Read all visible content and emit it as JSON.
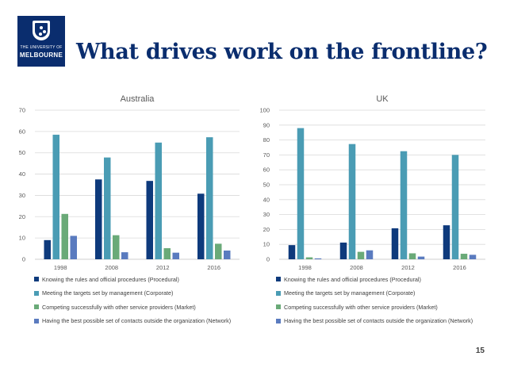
{
  "header": {
    "logo": {
      "line1": "THE UNIVERSITY OF",
      "line2": "MELBOURNE"
    },
    "title": "What drives work on the frontline?"
  },
  "page_number": "15",
  "colors": [
    "#0e3a7c",
    "#4a9cb4",
    "#6aaa78",
    "#5a7bbf"
  ],
  "chart_data": [
    {
      "type": "bar",
      "title": "Australia",
      "categories": [
        "1998",
        "2008",
        "2012",
        "2016"
      ],
      "ylim": [
        0,
        70
      ],
      "yticks": [
        0,
        10,
        20,
        30,
        40,
        50,
        60,
        70
      ],
      "grid": true,
      "legend_position": "bottom",
      "series": [
        {
          "name": "Knowing the rules and official procedures (Procedural)",
          "values": [
            9,
            37.5,
            36.8,
            30.8
          ]
        },
        {
          "name": "Meeting the targets set by management (Corporate)",
          "values": [
            58.5,
            47.8,
            54.8,
            57.3
          ]
        },
        {
          "name": "Competing successfully with other service providers (Market)",
          "values": [
            21.3,
            11.3,
            5.2,
            7.3
          ]
        },
        {
          "name": "Having the best possible set of contacts outside the organization (Network)",
          "values": [
            11,
            3.3,
            3.1,
            4.1
          ]
        }
      ]
    },
    {
      "type": "bar",
      "title": "UK",
      "categories": [
        "1998",
        "2008",
        "2012",
        "2016"
      ],
      "ylim": [
        0,
        100
      ],
      "yticks": [
        0,
        10,
        20,
        30,
        40,
        50,
        60,
        70,
        80,
        90,
        100
      ],
      "grid": true,
      "legend_position": "bottom",
      "series": [
        {
          "name": "Knowing the rules and official procedures (Procedural)",
          "values": [
            9.5,
            11.2,
            20.8,
            22.8
          ]
        },
        {
          "name": "Meeting the targets set by management (Corporate)",
          "values": [
            88,
            77.3,
            72.5,
            70
          ]
        },
        {
          "name": "Competing successfully with other service providers (Market)",
          "values": [
            1.3,
            5,
            4,
            3.7
          ]
        },
        {
          "name": "Having the best possible set of contacts outside the organization (Network)",
          "values": [
            0.6,
            6,
            1.8,
            3
          ]
        }
      ]
    }
  ]
}
